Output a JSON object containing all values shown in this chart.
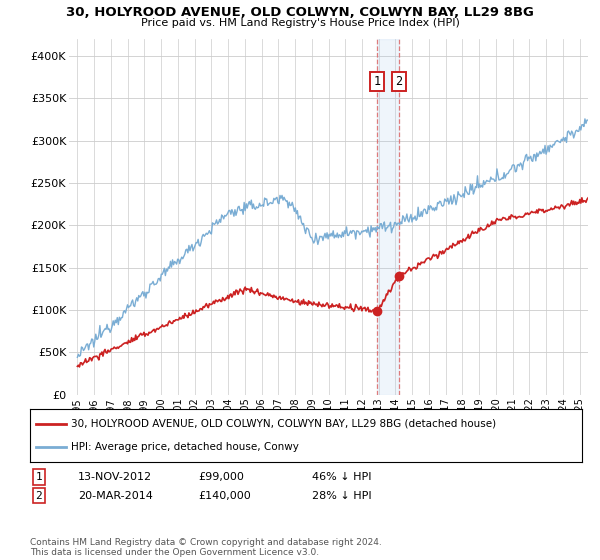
{
  "title1": "30, HOLYROOD AVENUE, OLD COLWYN, COLWYN BAY, LL29 8BG",
  "title2": "Price paid vs. HM Land Registry's House Price Index (HPI)",
  "hpi_color": "#7aadd4",
  "price_color": "#cc2222",
  "annotation_fill": "#ddeeff",
  "ylim": [
    0,
    420000
  ],
  "yticks": [
    0,
    50000,
    100000,
    150000,
    200000,
    250000,
    300000,
    350000,
    400000
  ],
  "ytick_labels": [
    "£0",
    "£50K",
    "£100K",
    "£150K",
    "£200K",
    "£250K",
    "£300K",
    "£350K",
    "£400K"
  ],
  "transaction1_x": 2012.88,
  "transaction1_y": 99000,
  "transaction1_date": "13-NOV-2012",
  "transaction1_price": 99000,
  "transaction1_pct": "46% ↓ HPI",
  "transaction2_x": 2014.21,
  "transaction2_y": 140000,
  "transaction2_date": "20-MAR-2014",
  "transaction2_price": 140000,
  "transaction2_pct": "28% ↓ HPI",
  "legend_label1": "30, HOLYROOD AVENUE, OLD COLWYN, COLWYN BAY, LL29 8BG (detached house)",
  "legend_label2": "HPI: Average price, detached house, Conwy",
  "footnote": "Contains HM Land Registry data © Crown copyright and database right 2024.\nThis data is licensed under the Open Government Licence v3.0.",
  "xmin": 1995.0,
  "xmax": 2025.5
}
